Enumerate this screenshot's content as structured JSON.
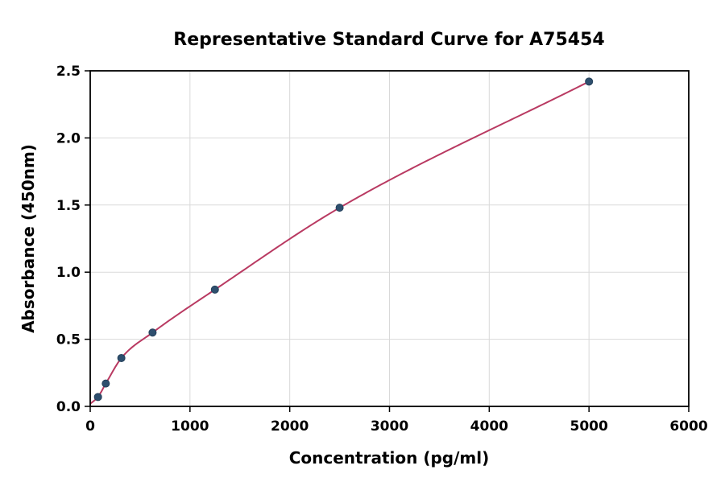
{
  "chart_data": {
    "type": "scatter",
    "title": "Representative Standard Curve for A75454",
    "xlabel": "Concentration (pg/ml)",
    "ylabel": "Absorbance (450nm)",
    "xlim": [
      0,
      6000
    ],
    "ylim": [
      0,
      2.5
    ],
    "x_ticks": [
      0,
      1000,
      2000,
      3000,
      4000,
      5000,
      6000
    ],
    "y_ticks": [
      0.0,
      0.5,
      1.0,
      1.5,
      2.0,
      2.5
    ],
    "grid": true,
    "legend": "none",
    "curve_start": {
      "x": 0,
      "y": 0.02
    },
    "points": [
      {
        "x": 78,
        "y": 0.07
      },
      {
        "x": 156,
        "y": 0.17
      },
      {
        "x": 312,
        "y": 0.36
      },
      {
        "x": 625,
        "y": 0.55
      },
      {
        "x": 1250,
        "y": 0.87
      },
      {
        "x": 2500,
        "y": 1.48
      },
      {
        "x": 5000,
        "y": 2.42
      }
    ],
    "colors": {
      "curve": "#b93a62",
      "marker_fill": "#2e4f6e",
      "marker_edge": "#24405a",
      "grid": "#d9d9d9",
      "axis": "#000000"
    }
  }
}
